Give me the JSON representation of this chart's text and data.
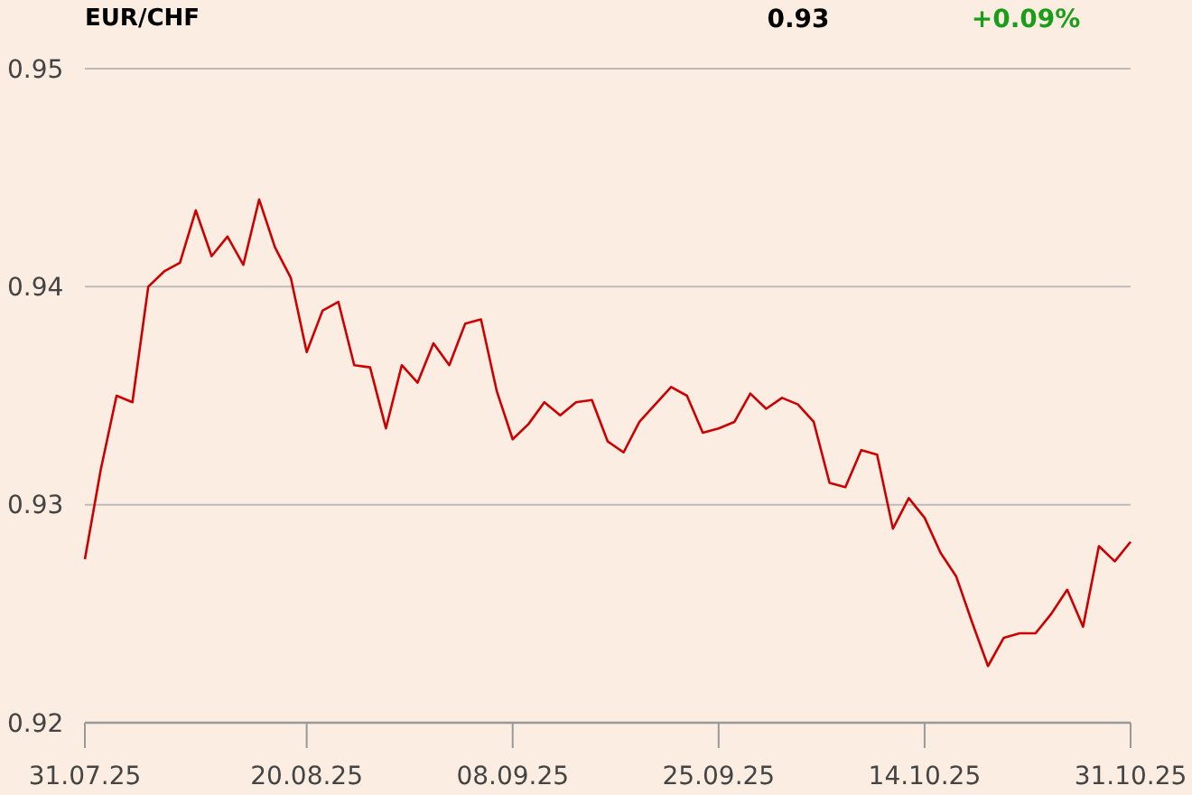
{
  "chart_data": {
    "type": "line",
    "title": "EUR/CHF",
    "annotations": [
      "0.93",
      "+0.09%"
    ],
    "categories": [
      "31.07.25",
      null,
      null,
      null,
      null,
      null,
      null,
      null,
      null,
      null,
      null,
      null,
      null,
      null,
      "20.08.25",
      null,
      null,
      null,
      null,
      null,
      null,
      null,
      null,
      null,
      null,
      null,
      null,
      "08.09.25",
      null,
      null,
      null,
      null,
      null,
      null,
      null,
      null,
      null,
      null,
      null,
      null,
      "25.09.25",
      null,
      null,
      null,
      null,
      null,
      null,
      null,
      null,
      null,
      null,
      null,
      null,
      "14.10.25",
      null,
      null,
      null,
      null,
      null,
      null,
      null,
      null,
      null,
      null,
      null,
      null,
      "31.10.25"
    ],
    "series": [
      {
        "color": "#cc0000",
        "values": [
          0.9275,
          0.9316,
          0.935,
          0.9347,
          0.94,
          0.9407,
          0.9411,
          0.9435,
          0.9414,
          0.9423,
          0.941,
          0.944,
          0.9418,
          0.9404,
          0.937,
          0.9389,
          0.9393,
          0.9364,
          0.9363,
          0.9335,
          0.9364,
          0.9356,
          0.9374,
          0.9364,
          0.9383,
          0.9385,
          0.9352,
          0.933,
          0.9337,
          0.9347,
          0.9341,
          0.9347,
          0.9348,
          0.9329,
          0.9324,
          0.9338,
          0.9346,
          0.9354,
          0.935,
          0.9333,
          0.9335,
          0.9338,
          0.9351,
          0.9344,
          0.9349,
          0.9346,
          0.9338,
          0.931,
          0.9308,
          0.9325,
          0.9323,
          0.9289,
          0.9303,
          0.9294,
          0.9278,
          0.9267,
          0.9246,
          0.9226,
          0.9239,
          0.9241,
          0.9241,
          0.925,
          0.9261,
          0.9244,
          0.9281,
          0.9274,
          0.9283
        ]
      }
    ],
    "ylim": [
      0.92,
      0.95
    ],
    "yticks": [
      0.92,
      0.93,
      0.94,
      0.95
    ],
    "grid": "y"
  }
}
